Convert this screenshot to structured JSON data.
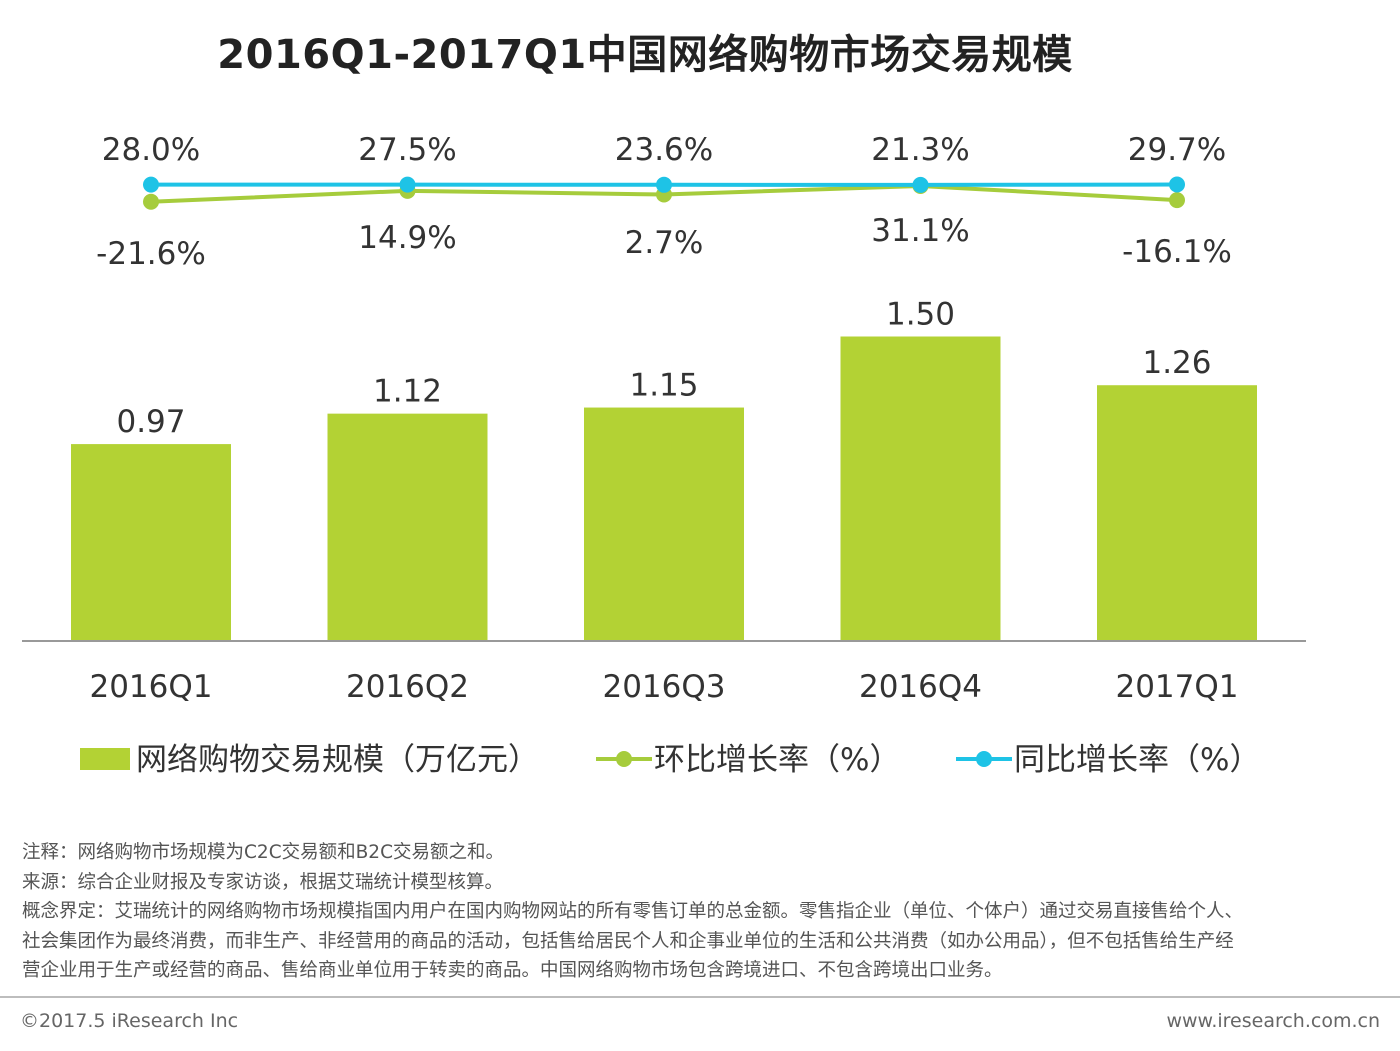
{
  "colors": {
    "bar": "#b3d234",
    "mom": "#a6cc3c",
    "yoy": "#1ec3e6",
    "axis": "#999999"
  },
  "chart_data": {
    "type": "bar",
    "title": "2016Q1-2017Q1中国网络购物市场交易规模",
    "categories": [
      "2016Q1",
      "2016Q2",
      "2016Q3",
      "2016Q4",
      "2017Q1"
    ],
    "series": [
      {
        "name": "网络购物交易规模（万亿元）",
        "type": "bar",
        "values": [
          0.97,
          1.12,
          1.15,
          1.5,
          1.26
        ],
        "labels": [
          "0.97",
          "1.12",
          "1.15",
          "1.50",
          "1.26"
        ]
      },
      {
        "name": "环比增长率（%）",
        "type": "line",
        "values": [
          -21.6,
          14.9,
          2.7,
          31.1,
          -16.1
        ],
        "labels": [
          "-21.6%",
          "14.9%",
          "2.7%",
          "31.1%",
          "-16.1%"
        ]
      },
      {
        "name": "同比增长率（%）",
        "type": "line",
        "values": [
          28.0,
          27.5,
          23.6,
          21.3,
          29.7
        ],
        "labels": [
          "28.0%",
          "27.5%",
          "23.6%",
          "21.3%",
          "29.7%"
        ]
      }
    ],
    "legend_position": "bottom"
  },
  "notes": {
    "line1": "注释：网络购物市场规模为C2C交易额和B2C交易额之和。",
    "line2": "来源：综合企业财报及专家访谈，根据艾瑞统计模型核算。",
    "line3": "概念界定：艾瑞统计的网络购物市场规模指国内用户在国内购物网站的所有零售订单的总金额。零售指企业（单位、个体户）通过交易直接售给个人、",
    "line4": "社会集团作为最终消费，而非生产、非经营用的商品的活动，包括售给居民个人和企事业单位的生活和公共消费（如办公用品），但不包括售给生产经",
    "line5": "营企业用于生产或经营的商品、售给商业单位用于转卖的商品。中国网络购物市场包含跨境进口、不包含跨境出口业务。"
  },
  "footer": {
    "copyright": "©2017.5 iResearch Inc",
    "website": "www.iresearch.com.cn"
  }
}
